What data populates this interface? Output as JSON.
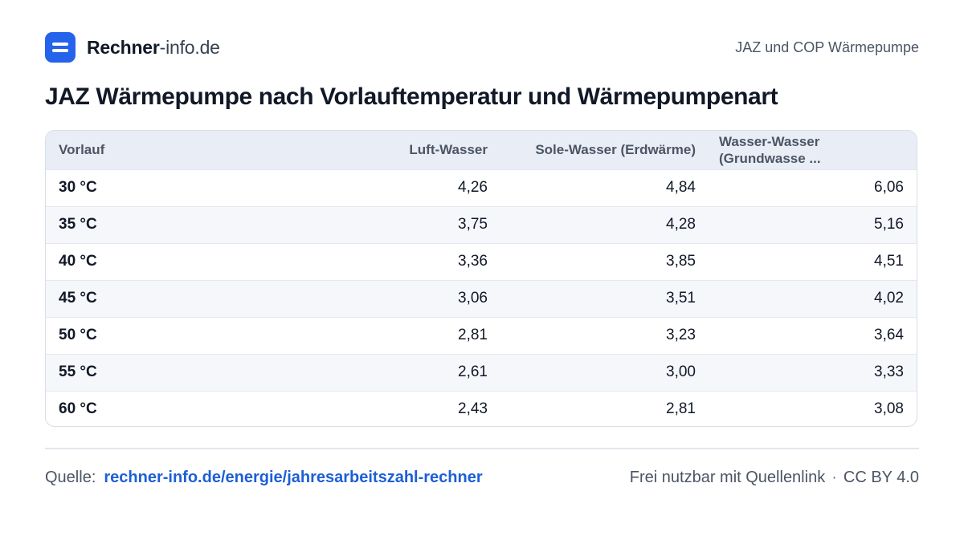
{
  "brand": {
    "name": "Rechner",
    "tld": "-info.de"
  },
  "header": {
    "right_label": "JAZ und COP Wärmepumpe"
  },
  "title": "JAZ Wärmepumpe nach Vorlauftemperatur und Wärmepumpenart",
  "table": {
    "columns": [
      "Vorlauf",
      "Luft-Wasser",
      "Sole-Wasser (Erdwärme)",
      "Wasser-Wasser (Grundwasse ..."
    ],
    "rows": [
      [
        "30 °C",
        "4,26",
        "4,84",
        "6,06"
      ],
      [
        "35 °C",
        "3,75",
        "4,28",
        "5,16"
      ],
      [
        "40 °C",
        "3,36",
        "3,85",
        "4,51"
      ],
      [
        "45 °C",
        "3,06",
        "3,51",
        "4,02"
      ],
      [
        "50 °C",
        "2,81",
        "3,23",
        "3,64"
      ],
      [
        "55 °C",
        "2,61",
        "3,00",
        "3,33"
      ],
      [
        "60 °C",
        "2,43",
        "2,81",
        "3,08"
      ]
    ]
  },
  "footer": {
    "source_label": "Quelle:",
    "source_link": "rechner-info.de/energie/jahresarbeitszahl-rechner",
    "license_note": "Frei nutzbar mit Quellenlink",
    "separator": "·",
    "license": "CC BY 4.0"
  },
  "colors": {
    "accent": "#2563eb",
    "link": "#1d5fd6",
    "header_bg": "#e9eef6",
    "stripe_bg": "#f5f7fb"
  },
  "icons": {
    "logo": "equals-logo-icon"
  }
}
